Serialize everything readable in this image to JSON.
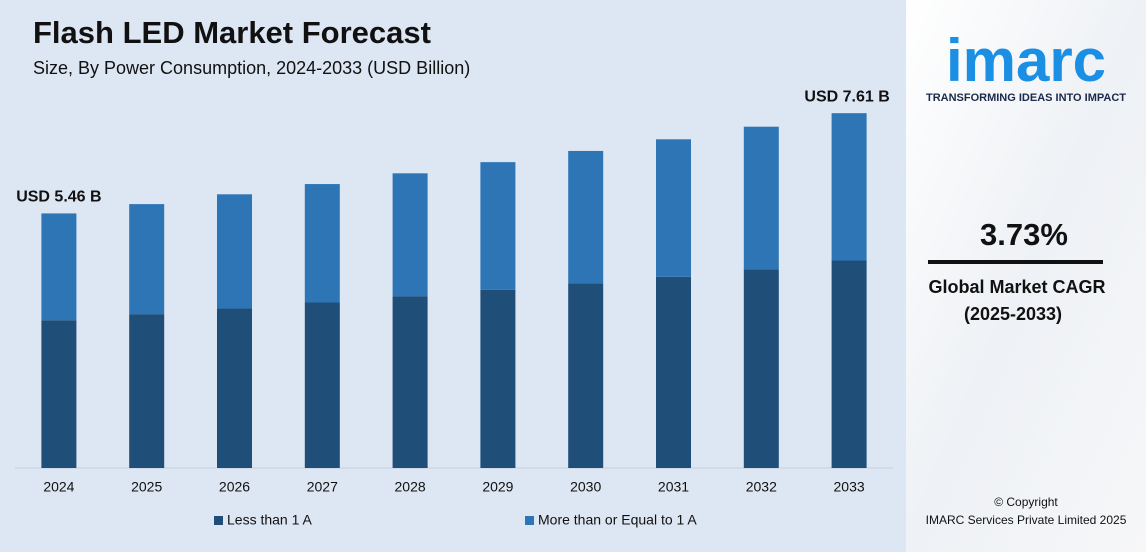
{
  "chart_data": {
    "type": "stacked-bar",
    "title": "Flash LED Market Forecast",
    "subtitle": "Size, By Power Consumption, 2024-2033 (USD Billion)",
    "categories": [
      "2024",
      "2025",
      "2026",
      "2027",
      "2028",
      "2029",
      "2030",
      "2031",
      "2032",
      "2033"
    ],
    "series": [
      {
        "name": "Less than 1 A",
        "color": "#1f4e79",
        "values": [
          3.17,
          3.3,
          3.42,
          3.55,
          3.68,
          3.82,
          3.96,
          4.1,
          4.26,
          4.45
        ]
      },
      {
        "name": "More than or Equal to 1 A",
        "color": "#2e75b6",
        "values": [
          2.29,
          2.36,
          2.45,
          2.54,
          2.64,
          2.74,
          2.84,
          2.95,
          3.06,
          3.16
        ]
      }
    ],
    "annotations": [
      "USD 5.46 B",
      "USD 7.61 B"
    ],
    "ylim": [
      0,
      8
    ],
    "grid": false
  },
  "sidebar": {
    "logo": "imarc",
    "tagline": "TRANSFORMING IDEAS INTO IMPACT",
    "cagr": "3.73%",
    "cagr_label": "Global Market CAGR",
    "cagr_period": "(2025-2033)",
    "copyright": "© Copyright",
    "company": "IMARC Services Private Limited 2025"
  }
}
